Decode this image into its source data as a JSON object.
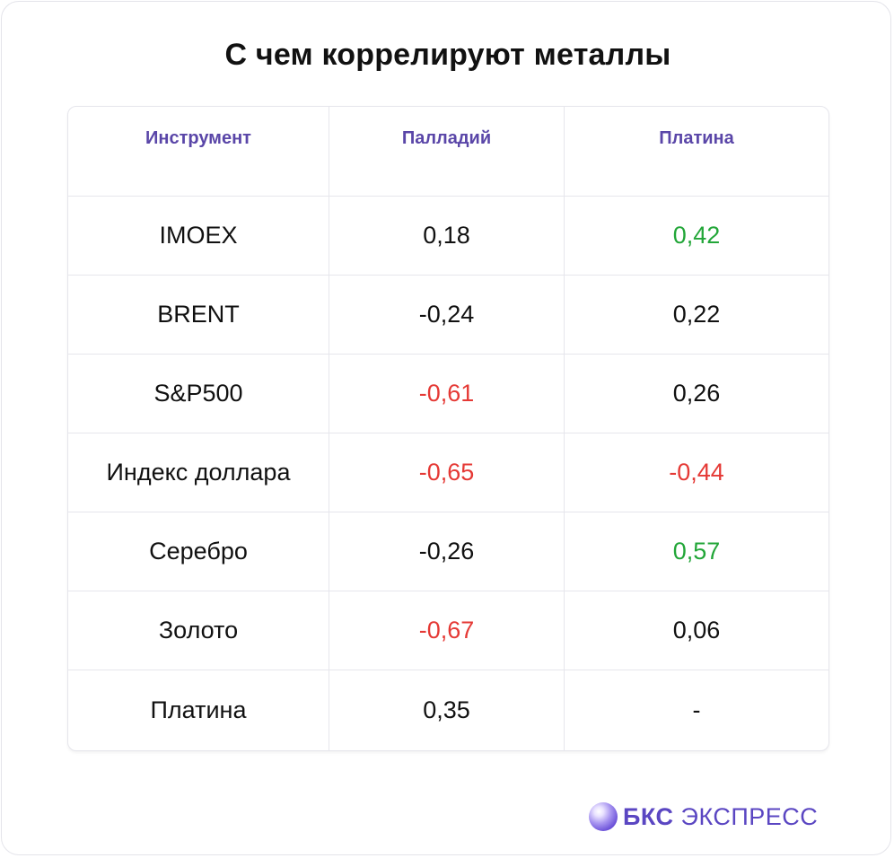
{
  "title": "С чем коррелируют металлы",
  "colors": {
    "positive": "#22a638",
    "negative": "#e53935",
    "neutral": "#111111",
    "header": "#5a46a8"
  },
  "table": {
    "headers": [
      "Инструмент",
      "Палладий",
      "Платина"
    ],
    "rows": [
      {
        "instrument": "IMOEX",
        "palladium": {
          "value": "0,18",
          "tone": "neutral"
        },
        "platinum": {
          "value": "0,42",
          "tone": "positive"
        }
      },
      {
        "instrument": "BRENT",
        "palladium": {
          "value": "-0,24",
          "tone": "neutral"
        },
        "platinum": {
          "value": "0,22",
          "tone": "neutral"
        }
      },
      {
        "instrument": "S&P500",
        "palladium": {
          "value": "-0,61",
          "tone": "negative"
        },
        "platinum": {
          "value": "0,26",
          "tone": "neutral"
        }
      },
      {
        "instrument": "Индекс доллара",
        "palladium": {
          "value": "-0,65",
          "tone": "negative"
        },
        "platinum": {
          "value": "-0,44",
          "tone": "negative"
        }
      },
      {
        "instrument": "Серебро",
        "palladium": {
          "value": "-0,26",
          "tone": "neutral"
        },
        "platinum": {
          "value": "0,57",
          "tone": "positive"
        }
      },
      {
        "instrument": "Золото",
        "palladium": {
          "value": "-0,67",
          "tone": "negative"
        },
        "platinum": {
          "value": "0,06",
          "tone": "neutral"
        }
      },
      {
        "instrument": "Платина",
        "palladium": {
          "value": "0,35",
          "tone": "neutral"
        },
        "platinum": {
          "value": "-",
          "tone": "neutral"
        }
      }
    ]
  },
  "brand": {
    "bold": "БКС",
    "rest": "ЭКСПРЕСС",
    "icon": "sphere-logo-icon"
  }
}
